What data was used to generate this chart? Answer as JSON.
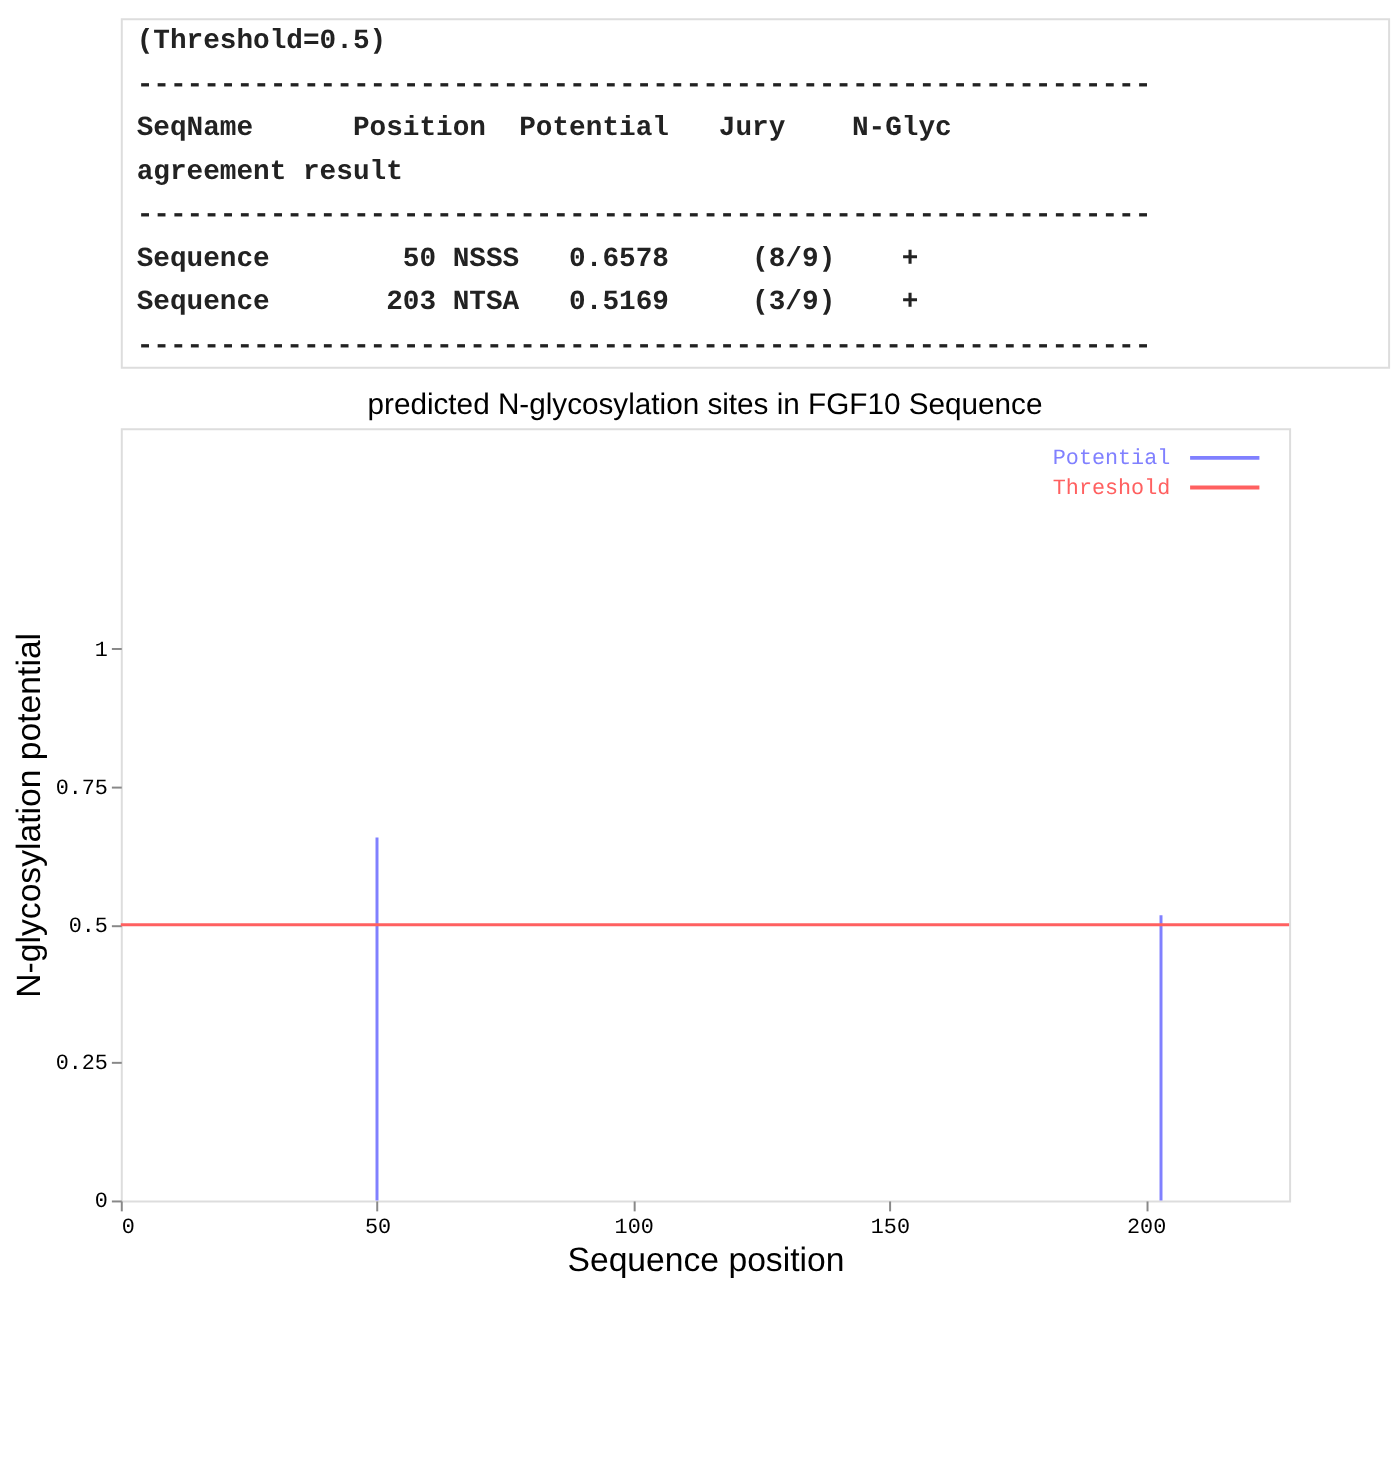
{
  "chart_data": {
    "type": "bar",
    "title": "predicted N-glycosylation sites in FGF10 Sequence",
    "xlabel": "Sequence position",
    "ylabel": "N-glycosylation potential",
    "x": [
      50,
      203
    ],
    "series": [
      {
        "name": "Potential",
        "color": "#8080ff",
        "values": [
          0.6578,
          0.5169
        ]
      }
    ],
    "xlim": [
      0,
      228
    ],
    "xticks": [
      0,
      50,
      100,
      150,
      200
    ],
    "ylim": [
      0,
      1.4
    ],
    "yticks": [
      0,
      0.25,
      0.5,
      0.75,
      1
    ],
    "ref_lines": [
      {
        "axis": "y",
        "value": 0.5,
        "label": "Threshold",
        "color": "#ff6060"
      }
    ],
    "legend": "top right",
    "grid": false,
    "annotations": [
      "(Threshold=0.5)",
      "-------------------------------------------------------------",
      "SeqName      Position  Potential   Jury    N-Glyc",
      "                                 agreement result",
      "-------------------------------------------------------------",
      "Sequence        50 NSSS   0.6578     (8/9)    +",
      "Sequence       203 NTSA   0.5169     (3/9)    +",
      "-------------------------------------------------------------"
    ]
  }
}
